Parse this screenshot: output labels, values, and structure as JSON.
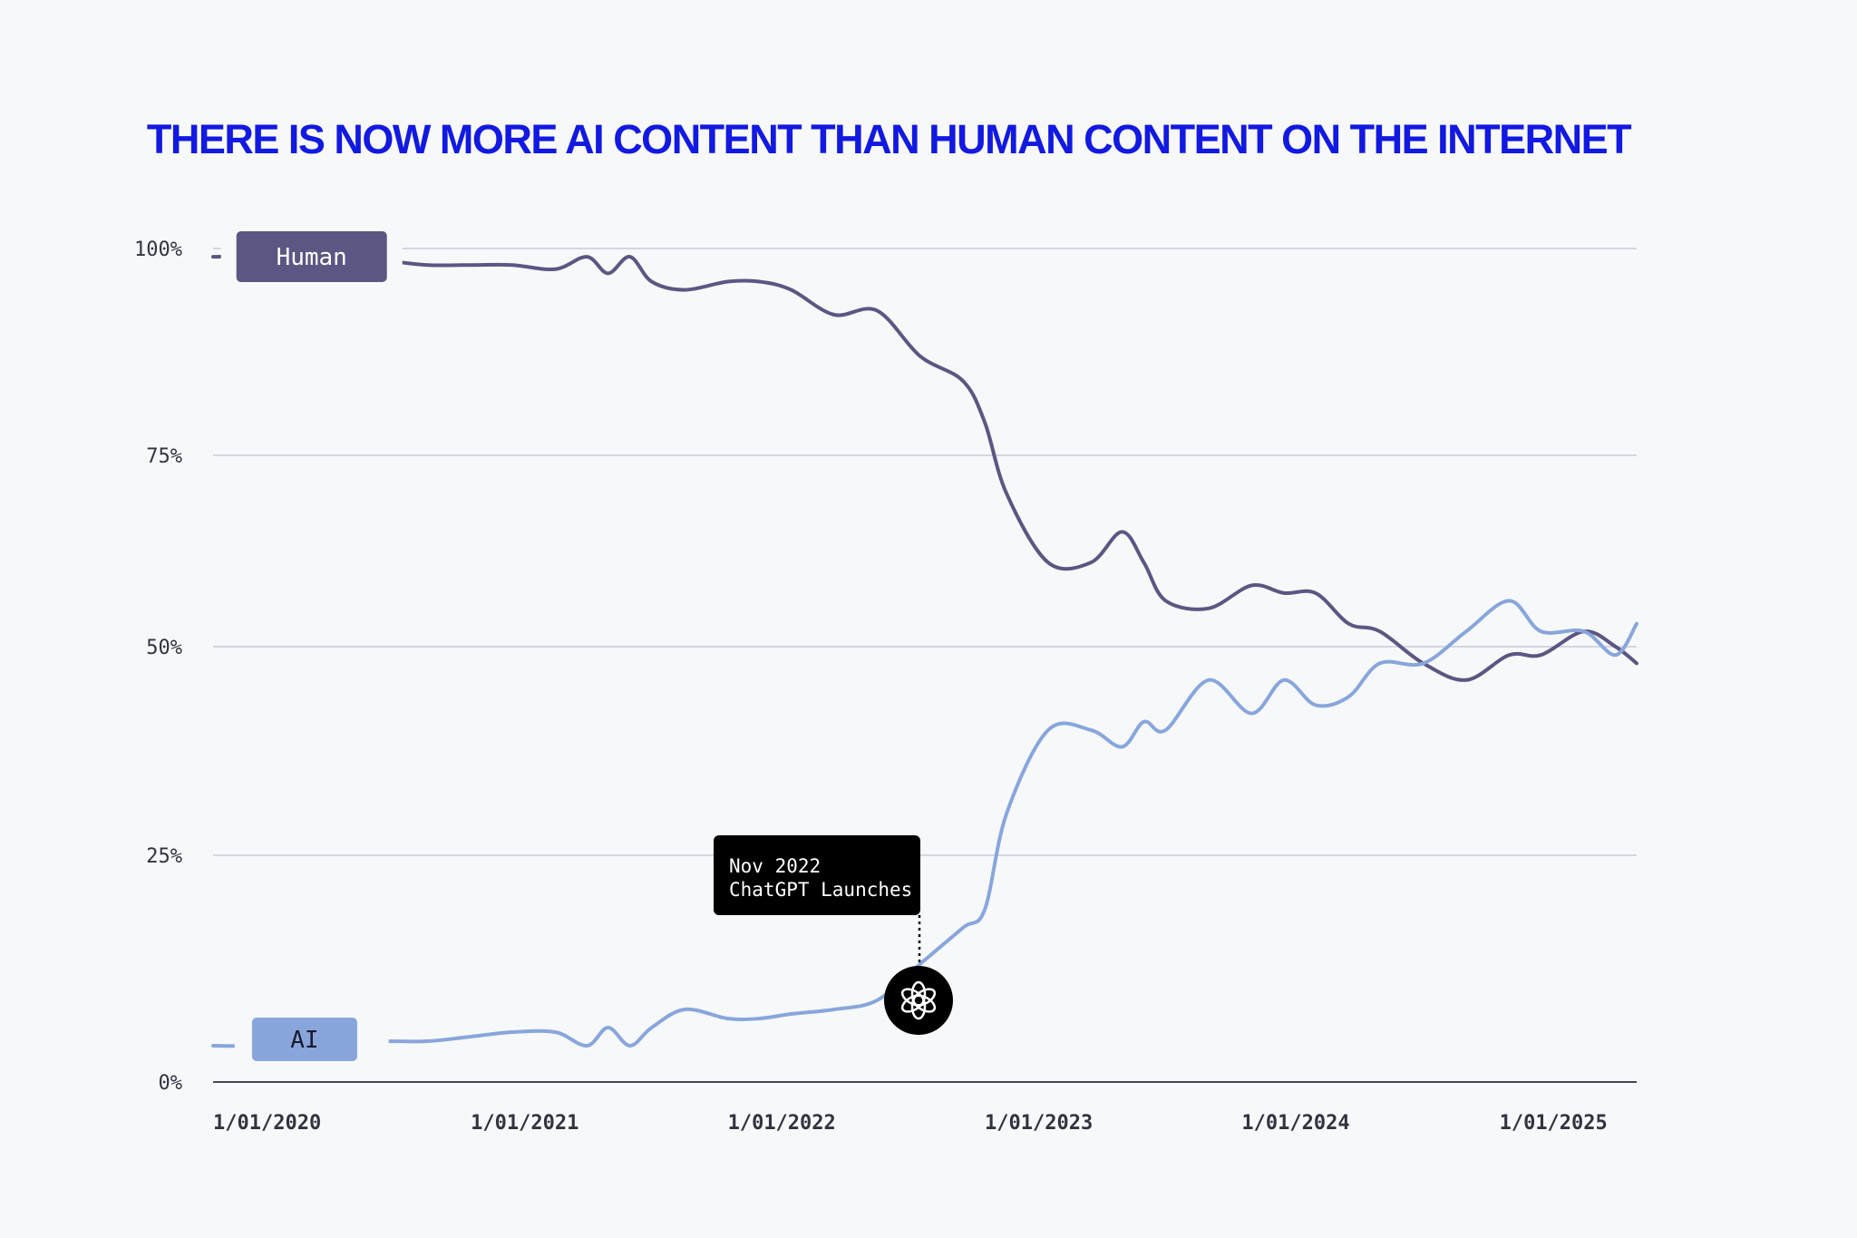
{
  "title": "THERE IS NOW MORE AI CONTENT THAN HUMAN CONTENT ON THE INTERNET",
  "colors": {
    "title": "#1219e0",
    "human": "#5c5683",
    "ai": "#88a6dc",
    "grid": "#c7cadd",
    "axis": "#444455",
    "annotation_bg": "#000000"
  },
  "annotation": {
    "line1": "Nov 2022",
    "line2": "ChatGPT Launches",
    "x": "2022-11-01",
    "icon": "openai-logo-icon"
  },
  "chart_data": {
    "type": "line",
    "title": "THERE IS NOW MORE AI CONTENT THAN HUMAN CONTENT ON THE INTERNET",
    "xlabel": "",
    "ylabel": "",
    "x_ticks": [
      "1/01/2020",
      "1/01/2021",
      "1/01/2022",
      "1/01/2023",
      "1/01/2024",
      "1/01/2025"
    ],
    "y_ticks": [
      "0%",
      "25%",
      "50%",
      "75%",
      "100%"
    ],
    "ylim": [
      0,
      100
    ],
    "xlim": [
      "2020-01-01",
      "2025-07-15"
    ],
    "grid": true,
    "legend": "inline labels on lines at left",
    "series": [
      {
        "name": "Human",
        "x": [
          "2020-01-01",
          "2020-03-01",
          "2020-05-01",
          "2020-07-01",
          "2020-09-01",
          "2020-11-01",
          "2021-01-01",
          "2021-03-01",
          "2021-05-01",
          "2021-06-15",
          "2021-07-15",
          "2021-08-15",
          "2021-09-15",
          "2021-11-01",
          "2022-01-01",
          "2022-02-15",
          "2022-04-01",
          "2022-06-01",
          "2022-08-01",
          "2022-10-01",
          "2022-12-01",
          "2023-01-01",
          "2023-02-01",
          "2023-04-01",
          "2023-06-01",
          "2023-07-15",
          "2023-08-15",
          "2023-09-15",
          "2023-11-15",
          "2024-01-15",
          "2024-03-01",
          "2024-04-15",
          "2024-06-01",
          "2024-07-15",
          "2024-09-15",
          "2024-11-15",
          "2025-01-15",
          "2025-03-01",
          "2025-05-01",
          "2025-06-15",
          "2025-07-15"
        ],
        "values": [
          99,
          99,
          98.5,
          98.5,
          98.5,
          98,
          98,
          98,
          97.5,
          99,
          97,
          99,
          96,
          95,
          96,
          96,
          95,
          92,
          92.5,
          87,
          84,
          79,
          70,
          61,
          61,
          65,
          61,
          56,
          55,
          58,
          57,
          57,
          53,
          52,
          48,
          46,
          49,
          49,
          52,
          50,
          48
        ]
      },
      {
        "name": "AI",
        "x": [
          "2020-01-01",
          "2020-03-01",
          "2020-05-01",
          "2020-07-01",
          "2020-09-01",
          "2020-11-01",
          "2021-01-01",
          "2021-03-01",
          "2021-05-01",
          "2021-06-15",
          "2021-07-15",
          "2021-08-15",
          "2021-09-15",
          "2021-11-01",
          "2022-01-01",
          "2022-02-15",
          "2022-04-01",
          "2022-06-01",
          "2022-08-01",
          "2022-10-01",
          "2022-12-01",
          "2023-01-01",
          "2023-02-01",
          "2023-04-01",
          "2023-06-01",
          "2023-07-15",
          "2023-08-15",
          "2023-09-15",
          "2023-11-15",
          "2024-01-15",
          "2024-03-01",
          "2024-04-15",
          "2024-06-01",
          "2024-07-15",
          "2024-09-15",
          "2024-11-15",
          "2025-01-15",
          "2025-03-01",
          "2025-05-01",
          "2025-06-15",
          "2025-07-15"
        ],
        "values": [
          4,
          4,
          4.5,
          4.5,
          4.5,
          4.5,
          5,
          5.5,
          5.5,
          4,
          6,
          4,
          6,
          8,
          7,
          7,
          7.5,
          8,
          9,
          13,
          17,
          19,
          30,
          40,
          40,
          38,
          41,
          40,
          46,
          42,
          46,
          43,
          44,
          48,
          48,
          52,
          56,
          52,
          52,
          49,
          53
        ]
      }
    ]
  }
}
